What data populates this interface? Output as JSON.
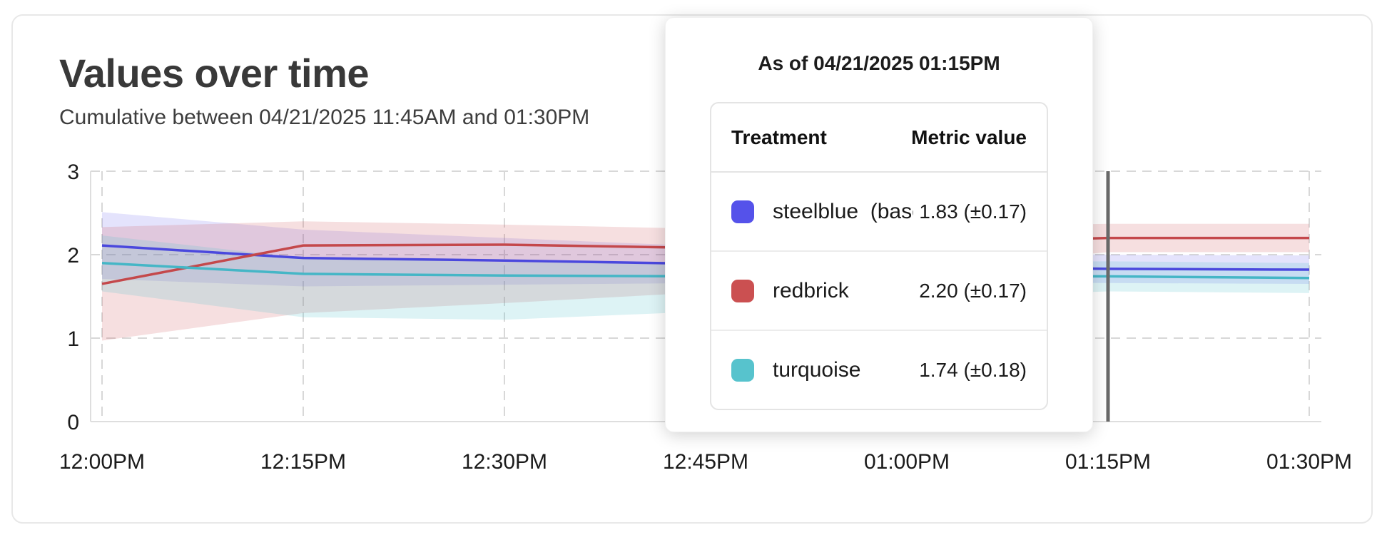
{
  "card": {
    "title": "Values over time",
    "subtitle": "Cumulative between 04/21/2025 11:45AM and 01:30PM"
  },
  "tooltip": {
    "header": "As of 04/21/2025 01:15PM",
    "columns": [
      "Treatment",
      "Metric value"
    ],
    "rows": [
      {
        "key": "steelblue",
        "swatch_color": "#5552ea",
        "label": "steelblue  (baseli",
        "value": "1.83 (±0.17)"
      },
      {
        "key": "redbrick",
        "swatch_color": "#cb5051",
        "label": "redbrick",
        "value": "2.20 (±0.17)"
      },
      {
        "key": "turquoise",
        "swatch_color": "#57c3cd",
        "label": "turquoise",
        "value": "1.74 (±0.18)"
      }
    ]
  },
  "chart_data": {
    "type": "line",
    "title": "Values over time",
    "x": [
      "12:00PM",
      "12:15PM",
      "12:30PM",
      "12:45PM",
      "01:00PM",
      "01:15PM",
      "01:30PM"
    ],
    "ylim": [
      0,
      3
    ],
    "yticks": [
      0,
      1,
      2,
      3
    ],
    "grid": "dashed",
    "hover_x_label": "01:15PM",
    "hover_line_color": "#696969",
    "gridline_color": "#d8d8d8",
    "axis_color": "#dedede",
    "tick_label_color": "#1b1b1b",
    "series": [
      {
        "key": "steelblue",
        "name": "steelblue  (baseli",
        "color": "#4a48dd",
        "band_color": "rgba(85,82,234,0.16)",
        "values": [
          2.11,
          1.96,
          1.93,
          1.89,
          1.86,
          1.83,
          1.82
        ],
        "upper": [
          2.51,
          2.3,
          2.2,
          2.1,
          2.03,
          2.0,
          1.99
        ],
        "lower": [
          1.71,
          1.62,
          1.64,
          1.66,
          1.67,
          1.66,
          1.65
        ]
      },
      {
        "key": "redbrick",
        "name": "redbrick",
        "color": "#c4484b",
        "band_color": "rgba(203,80,81,0.18)",
        "values": [
          1.65,
          2.11,
          2.12,
          2.08,
          2.14,
          2.2,
          2.2
        ],
        "upper": [
          2.33,
          2.4,
          2.36,
          2.31,
          2.33,
          2.37,
          2.37
        ],
        "lower": [
          0.97,
          1.3,
          1.42,
          1.55,
          1.82,
          2.03,
          2.03
        ]
      },
      {
        "key": "turquoise",
        "name": "turquoise",
        "color": "#45b6c6",
        "band_color": "rgba(87,195,205,0.20)",
        "values": [
          1.9,
          1.77,
          1.75,
          1.74,
          1.74,
          1.74,
          1.72
        ],
        "upper": [
          2.23,
          1.96,
          1.91,
          1.9,
          1.91,
          1.92,
          1.9
        ],
        "lower": [
          1.56,
          1.25,
          1.22,
          1.32,
          1.48,
          1.56,
          1.54
        ]
      }
    ]
  }
}
